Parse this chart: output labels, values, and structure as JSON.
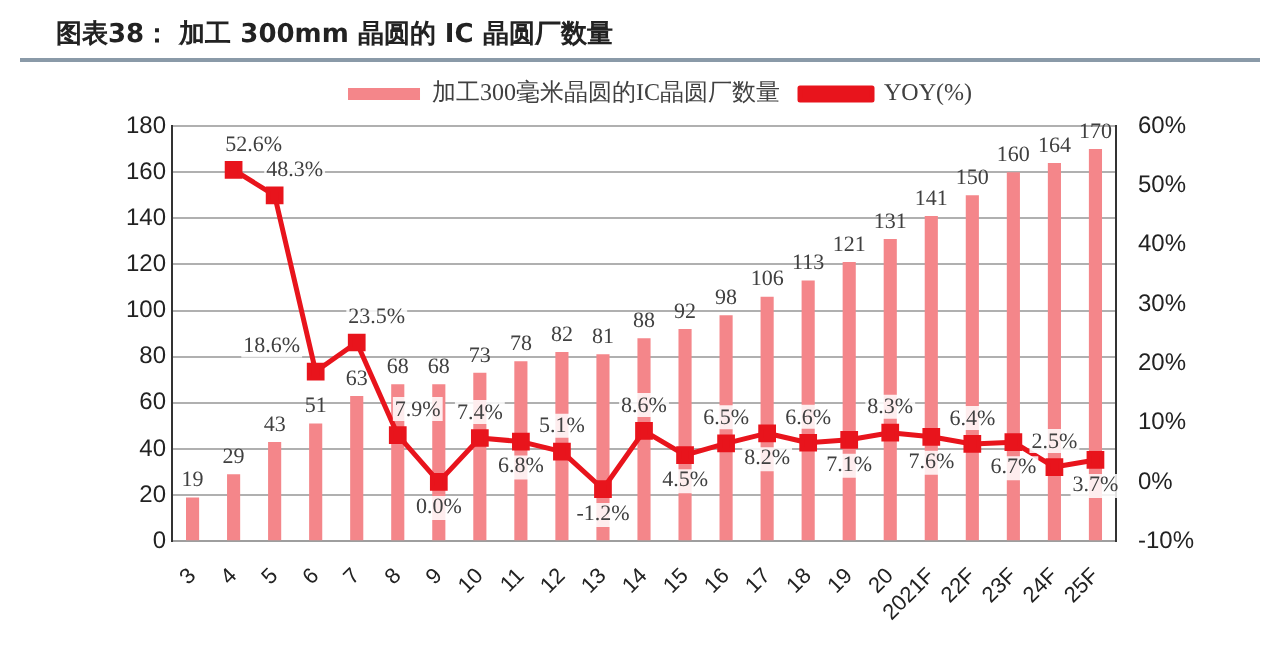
{
  "chart_data": {
    "type": "bar",
    "title": "图表38：  加工 300mm 晶圆的 IC 晶圆厂数量",
    "categories": [
      "3",
      "4",
      "5",
      "6",
      "7",
      "8",
      "9",
      "10",
      "11",
      "12",
      "13",
      "14",
      "15",
      "16",
      "17",
      "18",
      "19",
      "20",
      "2021F",
      "22F",
      "23F",
      "24F",
      "25F"
    ],
    "series": [
      {
        "name": "加工300毫米晶圆的IC晶圆厂数量",
        "color": "#f4868a",
        "values": [
          19,
          29,
          43,
          51,
          63,
          68,
          68,
          73,
          78,
          82,
          81,
          88,
          92,
          98,
          106,
          113,
          121,
          131,
          141,
          150,
          160,
          164,
          170
        ],
        "value_labels": [
          "19",
          "29",
          "43",
          "51",
          "63",
          "68",
          "68",
          "73",
          "78",
          "82",
          "81",
          "88",
          "92",
          "98",
          "106",
          "113",
          "121",
          "131",
          "141",
          "150",
          "160",
          "164",
          "170"
        ]
      },
      {
        "name": "YOY(%)",
        "type": "line",
        "axis": "y2",
        "color": "#e8141c",
        "values": [
          null,
          52.6,
          48.3,
          18.6,
          23.5,
          7.9,
          0.0,
          7.4,
          6.8,
          5.1,
          -1.2,
          8.6,
          4.5,
          6.5,
          8.2,
          6.6,
          7.1,
          8.3,
          7.6,
          6.4,
          6.7,
          2.5,
          3.7
        ],
        "value_labels": [
          null,
          "52.6%",
          "48.3%",
          "18.6%",
          "23.5%",
          "7.9%",
          "0.0%",
          "7.4%",
          "6.8%",
          "5.1%",
          "-1.2%",
          "8.6%",
          "4.5%",
          "6.5%",
          "8.2%",
          "6.6%",
          "7.1%",
          "8.3%",
          "7.6%",
          "6.4%",
          "6.7%",
          "2.5%",
          "3.7%"
        ]
      }
    ],
    "ylim": [
      0,
      180
    ],
    "yticks": [
      0,
      20,
      40,
      60,
      80,
      100,
      120,
      140,
      160,
      180
    ],
    "y2lim": [
      -10,
      60
    ],
    "y2ticks": [
      {
        "value": -10,
        "label": "-10%"
      },
      {
        "value": 0,
        "label": "0%"
      },
      {
        "value": 10,
        "label": "10%"
      },
      {
        "value": 20,
        "label": "20%"
      },
      {
        "value": 30,
        "label": "30%"
      },
      {
        "value": 40,
        "label": "40%"
      },
      {
        "value": 50,
        "label": "50%"
      },
      {
        "value": 60,
        "label": "60%"
      }
    ],
    "grid": "y",
    "legend": "top",
    "marker": "square",
    "line_style": "solid"
  }
}
